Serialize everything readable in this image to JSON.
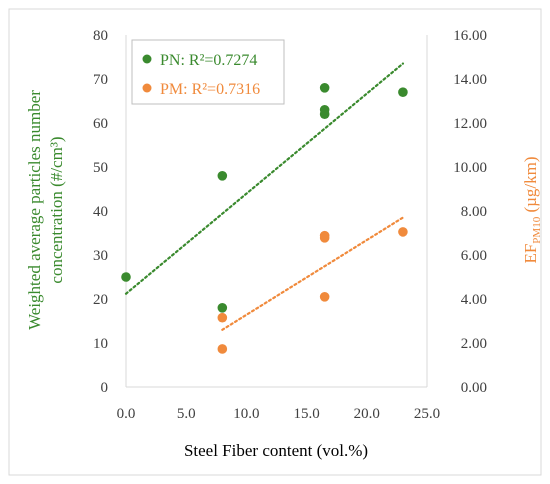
{
  "chart_data": {
    "type": "scatter",
    "title": "",
    "xlabel": "Steel Fiber content (vol.%)",
    "ylabel_left": "Weighted average particles number concentration (#/cm³)",
    "ylabel_right": "EFPM10 (µg/km)",
    "xlim": [
      0,
      25
    ],
    "ylim_left": [
      0,
      80
    ],
    "ylim_right": [
      0,
      16
    ],
    "x_ticks": [
      "0.0",
      "5.0",
      "10.0",
      "15.0",
      "20.0",
      "25.0"
    ],
    "y_left_ticks": [
      "0",
      "10",
      "20",
      "30",
      "40",
      "50",
      "60",
      "70",
      "80"
    ],
    "y_right_ticks": [
      "0.00",
      "2.00",
      "4.00",
      "6.00",
      "8.00",
      "10.00",
      "12.00",
      "14.00",
      "16.00"
    ],
    "grid": false,
    "legend_position": "top-left",
    "colors": {
      "pn": "#3a8a2e",
      "pm": "#f08a3c",
      "frame": "#d9d9d9",
      "text": "#404040"
    },
    "series": [
      {
        "name": "PN: R²=0.7274",
        "axis": "left",
        "color": "#3a8a2e",
        "points": [
          [
            0,
            25
          ],
          [
            8,
            48
          ],
          [
            8,
            18
          ],
          [
            16.5,
            68
          ],
          [
            16.5,
            63
          ],
          [
            16.5,
            62
          ],
          [
            23,
            67
          ]
        ],
        "trendline": {
          "x": [
            0,
            23
          ],
          "y": [
            21.2,
            73.5
          ]
        }
      },
      {
        "name": "PM: R²=0.7316",
        "axis": "right",
        "color": "#f08a3c",
        "points": [
          [
            8,
            3.15
          ],
          [
            8,
            1.73
          ],
          [
            16.5,
            6.88
          ],
          [
            16.5,
            6.78
          ],
          [
            16.5,
            4.1
          ],
          [
            23,
            7.05
          ]
        ],
        "trendline": {
          "x": [
            8,
            23
          ],
          "y": [
            2.6,
            7.7
          ]
        }
      }
    ]
  }
}
